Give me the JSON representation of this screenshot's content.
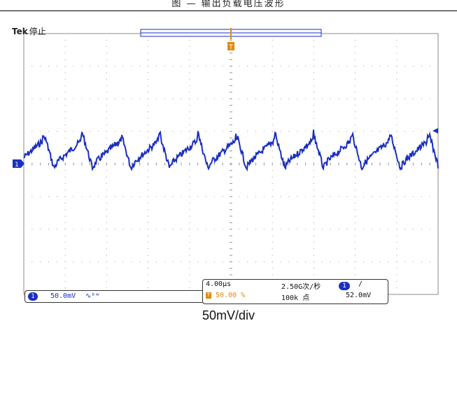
{
  "page": {
    "top_caption": "图 — 输出负载电压波形",
    "bottom_caption": "50mV/div"
  },
  "scope": {
    "brand": "Tek",
    "status": "停止",
    "trigger_marker_glyph": "T",
    "channel_marker_glyph": "1",
    "channel_badge": "1",
    "channel_scale": "50.0mV",
    "channel_coupling_icon": "∿ᵇʷ",
    "timebase": "4.00μs",
    "sample_rate": "2.50G次/秒",
    "record_length": "100k 点",
    "trigger_position": "50.00 %",
    "trigger_source_badge": "1",
    "trigger_slope": "∕",
    "trigger_level": "52.0mV",
    "colors": {
      "trace": "#1a2fc0",
      "trigger": "#e08a12",
      "grid": "#9a9a9a"
    },
    "icons": {
      "trigger_position_marker": "trigger-t-icon",
      "channel_ground_marker": "channel-1-marker-icon",
      "trigger_level_marker": "trigger-level-arrow-icon",
      "coupling": "bandwidth-limit-icon"
    }
  }
}
